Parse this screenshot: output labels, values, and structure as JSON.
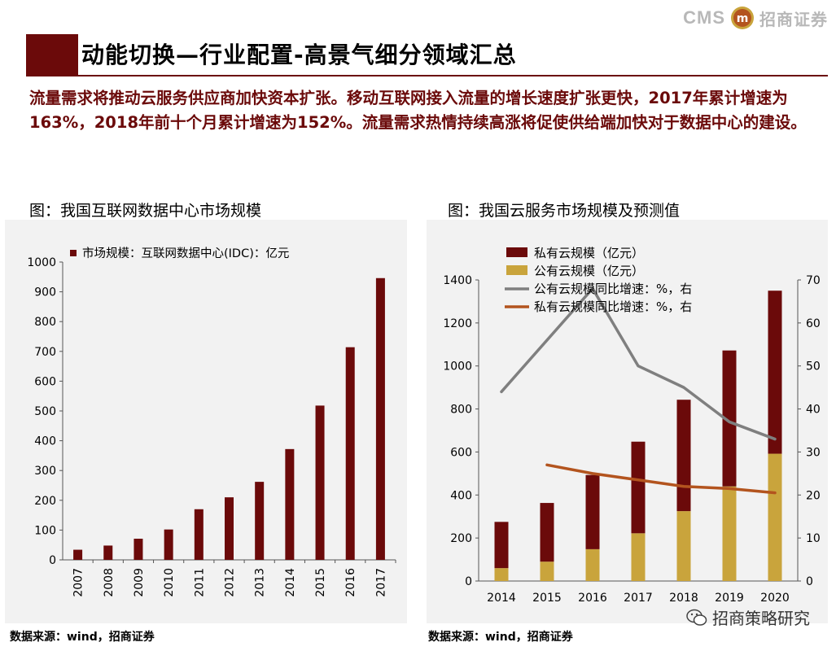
{
  "header": {
    "logo_text": "CMS",
    "logo_mark": "m",
    "logo_cn": "招商证券",
    "title": "动能切换—行业配置-高景气细分领域汇总"
  },
  "intro_text": "流量需求将推动云服务供应商加快资本扩张。移动互联网接入流量的增长速度扩张更快，2017年累计增速为163%，2018年前十个月累计增速为152%。流量需求热情持续高涨将促使供给端加快对于数据中心的建设。",
  "left": {
    "title": "图：我国互联网数据中心市场规模",
    "source": "数据来源：wind，招商证券"
  },
  "right": {
    "title": "图：我国云服务市场规模及预测值",
    "source": "数据来源：wind，招商证券"
  },
  "watermark": "招商策略研究",
  "colors": {
    "accent": "#6b0a0a",
    "bar_dark": "#6b0a0a",
    "bar_gold": "#c9a43c",
    "line_gray": "#7f7f7f",
    "line_orange": "#b3541e"
  },
  "chart_data": [
    {
      "type": "bar",
      "title": "图：我国互联网数据中心市场规模",
      "categories": [
        "2007",
        "2008",
        "2009",
        "2010",
        "2011",
        "2012",
        "2013",
        "2014",
        "2015",
        "2016",
        "2017"
      ],
      "series": [
        {
          "name": "市场规模：互联网数据中心(IDC)：亿元",
          "values": [
            34,
            48,
            71,
            102,
            170,
            210,
            262,
            372,
            518,
            714,
            946
          ]
        }
      ],
      "ylim": [
        0,
        1000
      ],
      "yticks": [
        0,
        100,
        200,
        300,
        400,
        500,
        600,
        700,
        800,
        900,
        1000
      ],
      "legend": "top-left",
      "grid": false
    },
    {
      "type": "bar",
      "stacked": true,
      "title": "图：我国云服务市场规模及预测值",
      "categories": [
        "2014",
        "2015",
        "2016",
        "2017",
        "2018",
        "2019",
        "2020"
      ],
      "series": [
        {
          "name": "公有云规模（亿元）",
          "type": "bar",
          "axis": "left",
          "values": [
            60,
            90,
            148,
            222,
            325,
            440,
            592
          ]
        },
        {
          "name": "私有云规模（亿元）",
          "type": "bar",
          "axis": "left",
          "values": [
            215,
            273,
            345,
            426,
            518,
            632,
            758
          ]
        },
        {
          "name": "公有云规模同比增速：%，右",
          "type": "line",
          "axis": "right",
          "values": [
            44,
            null,
            68,
            50,
            45,
            37,
            33
          ]
        },
        {
          "name": "私有云规模同比增速：%，右",
          "type": "line",
          "axis": "right",
          "values": [
            null,
            27,
            25,
            23.5,
            22,
            21.5,
            20.5
          ]
        }
      ],
      "ylim": [
        0,
        1400
      ],
      "yticks": [
        0,
        200,
        400,
        600,
        800,
        1000,
        1200,
        1400
      ],
      "y2lim": [
        0,
        70
      ],
      "y2ticks": [
        0,
        10,
        20,
        30,
        40,
        50,
        60,
        70
      ],
      "legend_order": [
        "私有云规模（亿元）",
        "公有云规模（亿元）",
        "公有云规模同比增速：%，右",
        "私有云规模同比增速：%，右"
      ],
      "legend": "top-left",
      "grid": false
    }
  ]
}
